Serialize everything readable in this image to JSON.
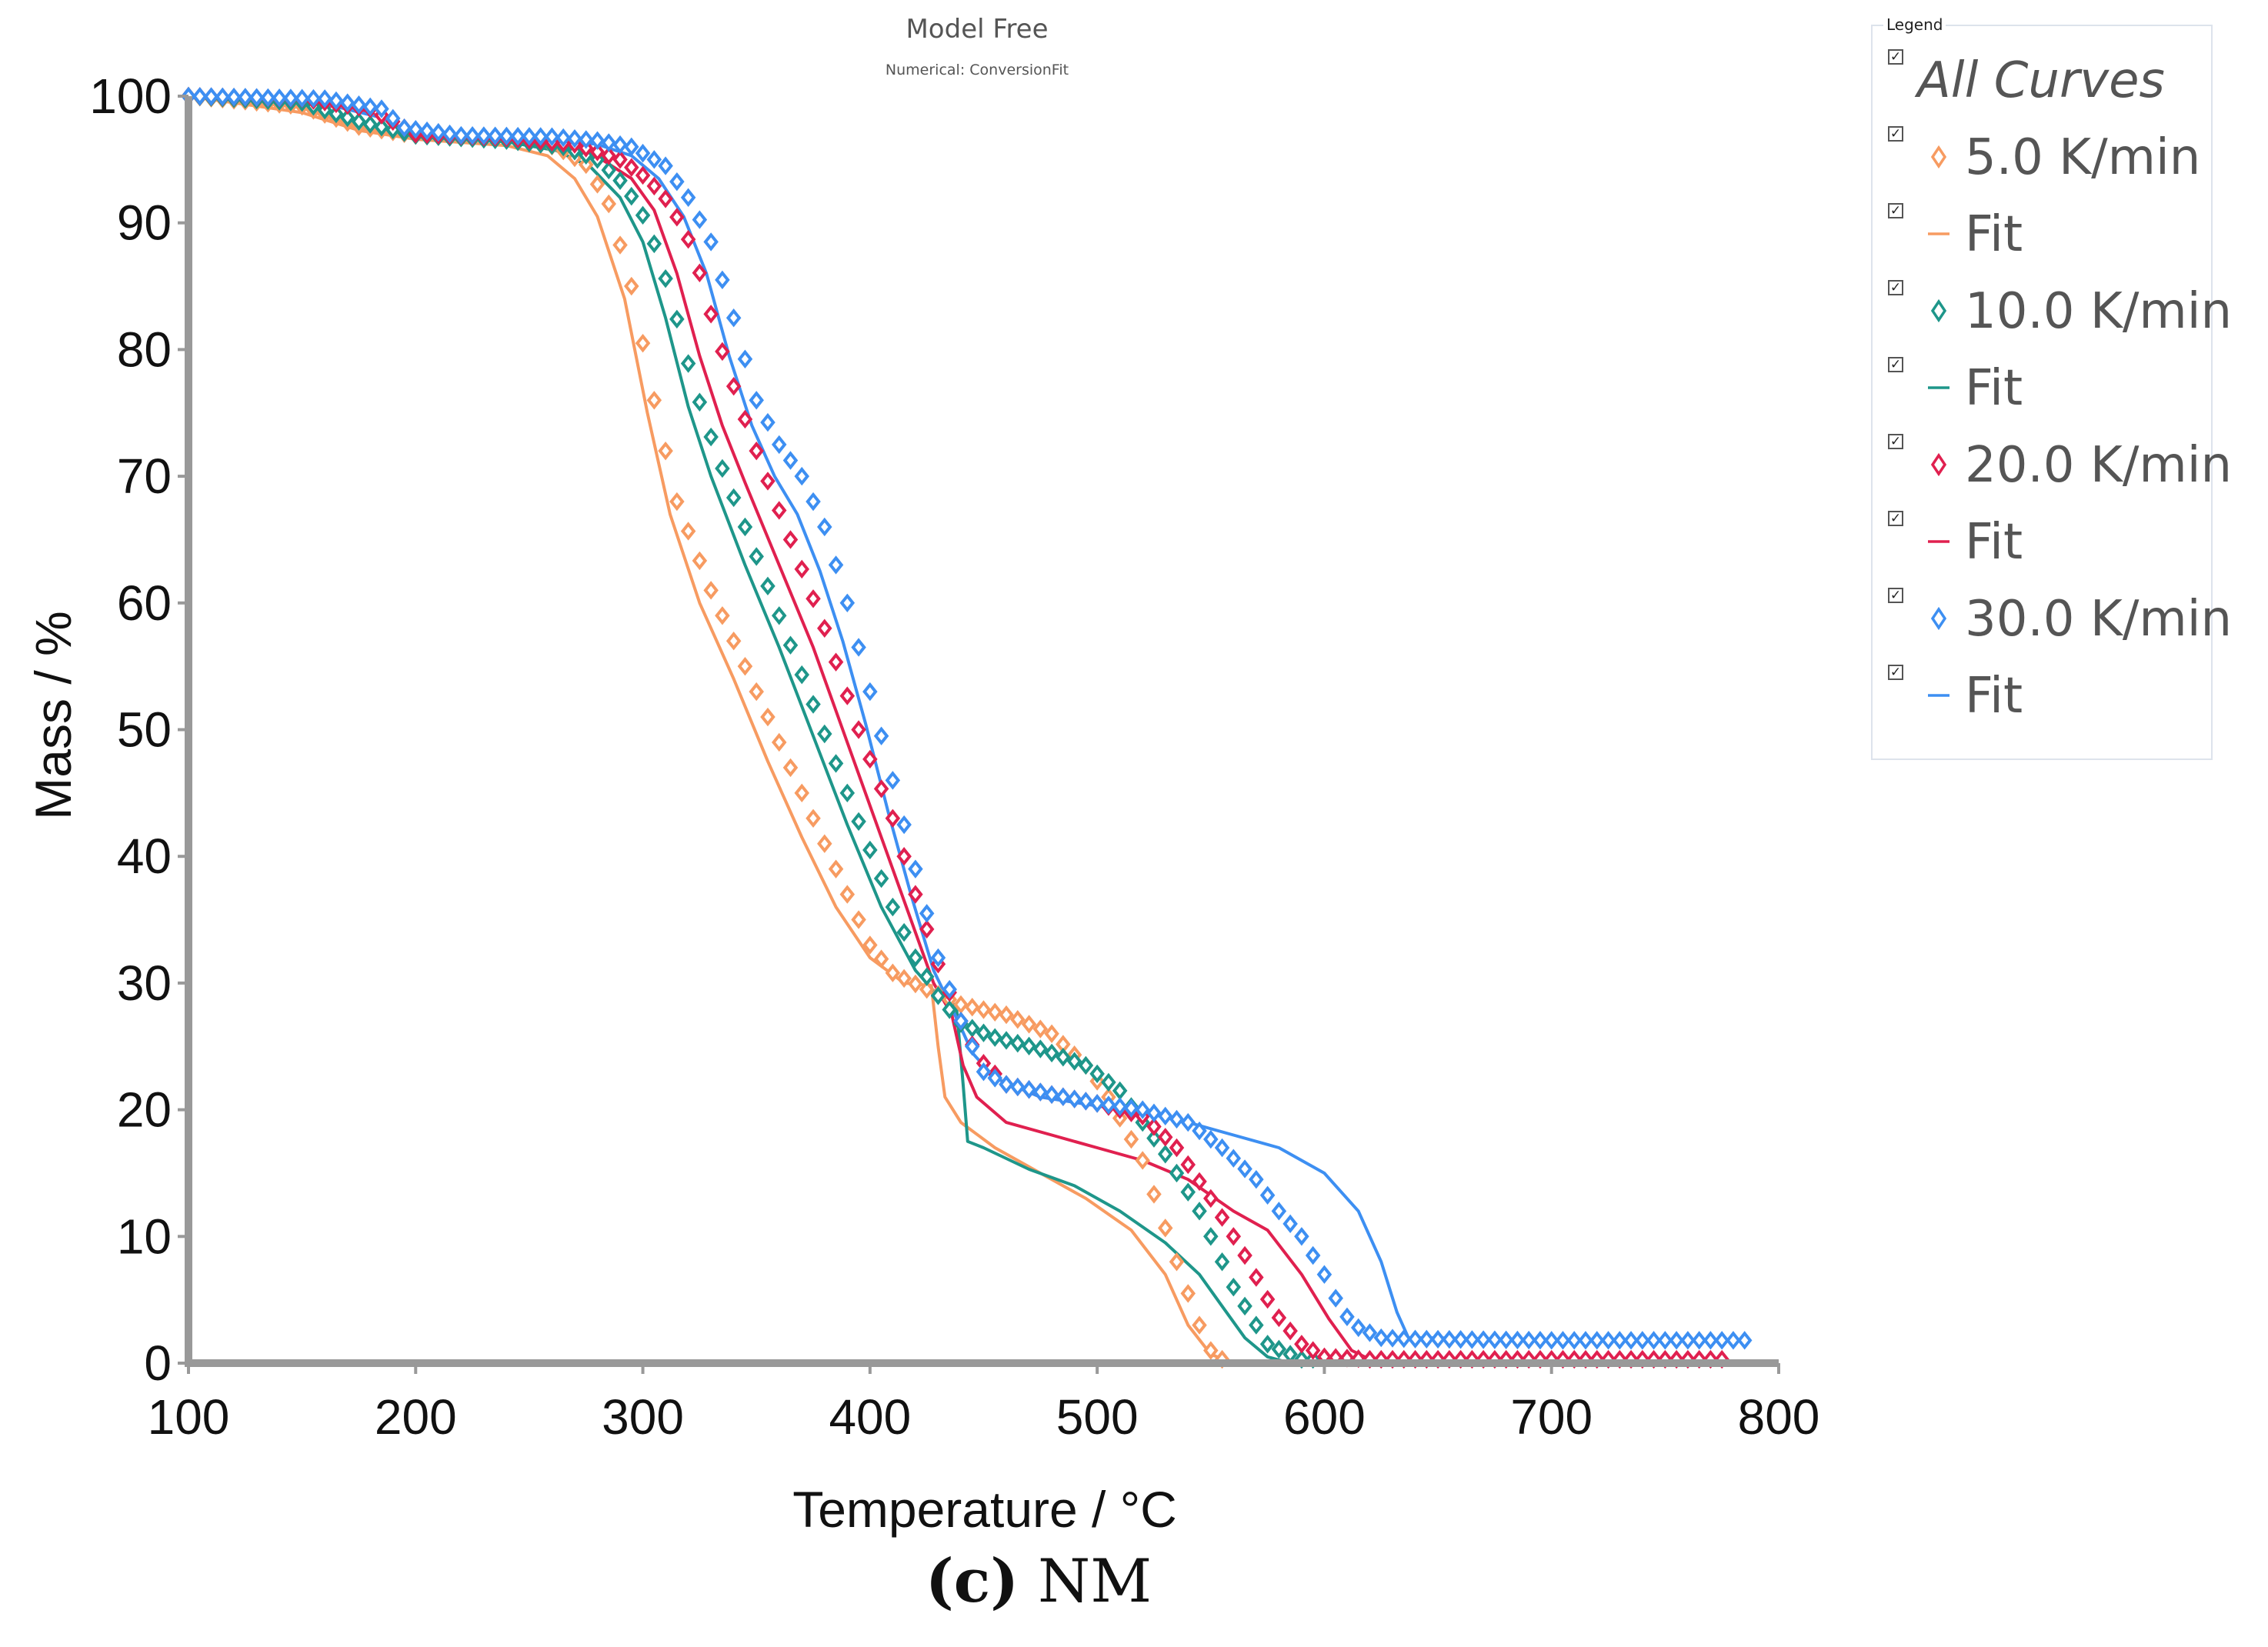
{
  "chart_data": {
    "type": "line",
    "title": "Model Free",
    "subtitle": "Numerical: ConversionFit",
    "xlabel": "Temperature / °C",
    "ylabel": "Mass / %",
    "xlim": [
      100,
      800
    ],
    "ylim": [
      0,
      100
    ],
    "xticks": [
      "100",
      "200",
      "300",
      "400",
      "500",
      "600",
      "700",
      "800"
    ],
    "yticks": [
      "0",
      "10",
      "20",
      "30",
      "40",
      "50",
      "60",
      "70",
      "80",
      "90",
      "100"
    ],
    "grid": false,
    "legend_position": "top-right",
    "series": [
      {
        "name": "5.0 K/min",
        "kind": "marker",
        "color": "#f79b61",
        "x_end": 555,
        "points": [
          [
            100,
            100
          ],
          [
            150,
            99.2
          ],
          [
            175,
            97.6
          ],
          [
            200,
            96.9
          ],
          [
            240,
            96.6
          ],
          [
            262,
            96.0
          ],
          [
            275,
            94.6
          ],
          [
            285,
            91.5
          ],
          [
            295,
            85
          ],
          [
            305,
            76
          ],
          [
            315,
            68
          ],
          [
            330,
            61
          ],
          [
            345,
            55
          ],
          [
            360,
            49
          ],
          [
            375,
            43
          ],
          [
            390,
            37
          ],
          [
            400,
            33
          ],
          [
            410,
            30.8
          ],
          [
            425,
            29.5
          ],
          [
            440,
            28.3
          ],
          [
            460,
            27.5
          ],
          [
            480,
            26
          ],
          [
            495,
            23.5
          ],
          [
            505,
            21
          ],
          [
            520,
            16
          ],
          [
            535,
            8
          ],
          [
            545,
            3
          ],
          [
            550,
            1
          ],
          [
            555,
            0.3
          ]
        ]
      },
      {
        "name": "Fit",
        "kind": "line",
        "color": "#f79b61",
        "points": [
          [
            100,
            100
          ],
          [
            150,
            98.7
          ],
          [
            175,
            97.3
          ],
          [
            200,
            96.6
          ],
          [
            240,
            96.1
          ],
          [
            258,
            95.3
          ],
          [
            270,
            93.5
          ],
          [
            280,
            90.5
          ],
          [
            292,
            84
          ],
          [
            302,
            75
          ],
          [
            312,
            67
          ],
          [
            325,
            60
          ],
          [
            340,
            54
          ],
          [
            355,
            47.5
          ],
          [
            370,
            41.5
          ],
          [
            385,
            36
          ],
          [
            400,
            32
          ],
          [
            415,
            30
          ],
          [
            427,
            29.8
          ],
          [
            430,
            25
          ],
          [
            433,
            21
          ],
          [
            440,
            19
          ],
          [
            455,
            17
          ],
          [
            475,
            15
          ],
          [
            495,
            13
          ],
          [
            515,
            10.5
          ],
          [
            530,
            7
          ],
          [
            540,
            3
          ],
          [
            550,
            0.7
          ],
          [
            560,
            0
          ],
          [
            600,
            0
          ]
        ]
      },
      {
        "name": "10.0 K/min",
        "kind": "marker",
        "color": "#1e968a",
        "x_end": 595,
        "points": [
          [
            100,
            100
          ],
          [
            150,
            99.5
          ],
          [
            175,
            98
          ],
          [
            200,
            96.9
          ],
          [
            240,
            96.5
          ],
          [
            265,
            96
          ],
          [
            280,
            95
          ],
          [
            292,
            93
          ],
          [
            302,
            90
          ],
          [
            312,
            84.5
          ],
          [
            322,
            77.5
          ],
          [
            332,
            72
          ],
          [
            345,
            66
          ],
          [
            360,
            59
          ],
          [
            375,
            52
          ],
          [
            390,
            45
          ],
          [
            400,
            40.5
          ],
          [
            410,
            36
          ],
          [
            420,
            32
          ],
          [
            430,
            29
          ],
          [
            440,
            26.8
          ],
          [
            455,
            25.7
          ],
          [
            475,
            24.8
          ],
          [
            495,
            23.5
          ],
          [
            510,
            21.5
          ],
          [
            520,
            19
          ],
          [
            530,
            16.5
          ],
          [
            545,
            12
          ],
          [
            560,
            6
          ],
          [
            575,
            1.5
          ],
          [
            590,
            0.3
          ],
          [
            595,
            0.3
          ]
        ]
      },
      {
        "name": "Fit",
        "kind": "line",
        "color": "#1e968a",
        "points": [
          [
            100,
            100
          ],
          [
            150,
            99.3
          ],
          [
            175,
            97.8
          ],
          [
            200,
            96.8
          ],
          [
            240,
            96.4
          ],
          [
            262,
            95.7
          ],
          [
            277,
            94.4
          ],
          [
            290,
            92
          ],
          [
            300,
            88.5
          ],
          [
            310,
            82.5
          ],
          [
            320,
            75.5
          ],
          [
            330,
            70
          ],
          [
            345,
            63
          ],
          [
            360,
            56.5
          ],
          [
            375,
            49.5
          ],
          [
            390,
            42.5
          ],
          [
            405,
            36
          ],
          [
            420,
            31
          ],
          [
            430,
            29
          ],
          [
            438,
            28.2
          ],
          [
            441,
            22
          ],
          [
            443,
            17.5
          ],
          [
            450,
            17
          ],
          [
            470,
            15.3
          ],
          [
            490,
            14
          ],
          [
            510,
            12
          ],
          [
            530,
            9.5
          ],
          [
            545,
            7
          ],
          [
            555,
            4.5
          ],
          [
            565,
            2
          ],
          [
            575,
            0.5
          ],
          [
            585,
            0
          ],
          [
            620,
            0
          ]
        ]
      },
      {
        "name": "20.0 K/min",
        "kind": "marker",
        "color": "#e0204f",
        "x_end": 775,
        "points": [
          [
            100,
            100
          ],
          [
            150,
            99.8
          ],
          [
            180,
            99
          ],
          [
            200,
            97
          ],
          [
            240,
            96.7
          ],
          [
            270,
            96.2
          ],
          [
            290,
            95
          ],
          [
            302,
            93.5
          ],
          [
            312,
            91.5
          ],
          [
            322,
            88
          ],
          [
            332,
            81.5
          ],
          [
            342,
            76
          ],
          [
            352,
            71
          ],
          [
            365,
            65
          ],
          [
            380,
            58
          ],
          [
            395,
            50
          ],
          [
            410,
            43
          ],
          [
            420,
            37
          ],
          [
            430,
            31.5
          ],
          [
            440,
            27
          ],
          [
            448,
            24
          ],
          [
            460,
            22
          ],
          [
            480,
            21.2
          ],
          [
            500,
            20.5
          ],
          [
            520,
            19.5
          ],
          [
            535,
            17
          ],
          [
            550,
            13
          ],
          [
            565,
            8.5
          ],
          [
            578,
            4
          ],
          [
            590,
            1.5
          ],
          [
            600,
            0.5
          ],
          [
            620,
            0.3
          ],
          [
            700,
            0.3
          ],
          [
            775,
            0.3
          ]
        ]
      },
      {
        "name": "Fit",
        "kind": "line",
        "color": "#e0204f",
        "points": [
          [
            100,
            100
          ],
          [
            150,
            99.6
          ],
          [
            180,
            98.7
          ],
          [
            200,
            97
          ],
          [
            240,
            96.5
          ],
          [
            265,
            96
          ],
          [
            282,
            95
          ],
          [
            295,
            93.5
          ],
          [
            305,
            91
          ],
          [
            315,
            86
          ],
          [
            325,
            79.5
          ],
          [
            335,
            74
          ],
          [
            345,
            69.5
          ],
          [
            360,
            63
          ],
          [
            375,
            56.5
          ],
          [
            390,
            49
          ],
          [
            405,
            41.5
          ],
          [
            418,
            35
          ],
          [
            428,
            30
          ],
          [
            436,
            27.5
          ],
          [
            441,
            23.5
          ],
          [
            447,
            21
          ],
          [
            460,
            19
          ],
          [
            480,
            18
          ],
          [
            500,
            17
          ],
          [
            520,
            16
          ],
          [
            540,
            14.5
          ],
          [
            560,
            12
          ],
          [
            575,
            10.5
          ],
          [
            590,
            7
          ],
          [
            602,
            3.5
          ],
          [
            612,
            1
          ],
          [
            620,
            0.3
          ],
          [
            650,
            0.3
          ],
          [
            775,
            0.3
          ]
        ]
      },
      {
        "name": "30.0 K/min",
        "kind": "marker",
        "color": "#3d8ff2",
        "x_end": 785,
        "points": [
          [
            100,
            100
          ],
          [
            160,
            99.8
          ],
          [
            185,
            99
          ],
          [
            195,
            97.5
          ],
          [
            220,
            96.9
          ],
          [
            260,
            96.8
          ],
          [
            280,
            96.5
          ],
          [
            295,
            96
          ],
          [
            310,
            94.5
          ],
          [
            320,
            92
          ],
          [
            330,
            88.5
          ],
          [
            340,
            82.5
          ],
          [
            350,
            76
          ],
          [
            360,
            72.5
          ],
          [
            370,
            70
          ],
          [
            380,
            66
          ],
          [
            390,
            60
          ],
          [
            400,
            53
          ],
          [
            410,
            46
          ],
          [
            420,
            39
          ],
          [
            430,
            32
          ],
          [
            440,
            27
          ],
          [
            450,
            23
          ],
          [
            460,
            22
          ],
          [
            480,
            21.2
          ],
          [
            500,
            20.5
          ],
          [
            520,
            20
          ],
          [
            540,
            19
          ],
          [
            555,
            17
          ],
          [
            570,
            14.5
          ],
          [
            580,
            12
          ],
          [
            590,
            10
          ],
          [
            600,
            7
          ],
          [
            608,
            4
          ],
          [
            615,
            2.8
          ],
          [
            625,
            2
          ],
          [
            640,
            1.9
          ],
          [
            700,
            1.8
          ],
          [
            785,
            1.8
          ]
        ]
      },
      {
        "name": "Fit",
        "kind": "line",
        "color": "#3d8ff2",
        "points": [
          [
            100,
            100
          ],
          [
            160,
            99.4
          ],
          [
            185,
            98.3
          ],
          [
            195,
            97.4
          ],
          [
            220,
            96.9
          ],
          [
            260,
            96.6
          ],
          [
            280,
            96.2
          ],
          [
            295,
            95.3
          ],
          [
            307,
            93.5
          ],
          [
            318,
            90.5
          ],
          [
            328,
            86
          ],
          [
            338,
            79.5
          ],
          [
            348,
            74
          ],
          [
            358,
            70
          ],
          [
            368,
            67
          ],
          [
            378,
            62.5
          ],
          [
            388,
            57
          ],
          [
            398,
            50.5
          ],
          [
            408,
            43.5
          ],
          [
            418,
            37
          ],
          [
            428,
            31
          ],
          [
            436,
            28
          ],
          [
            440,
            26.5
          ],
          [
            445,
            24.5
          ],
          [
            455,
            22.5
          ],
          [
            475,
            21
          ],
          [
            500,
            20.3
          ],
          [
            520,
            19.8
          ],
          [
            540,
            19
          ],
          [
            560,
            18
          ],
          [
            580,
            17
          ],
          [
            600,
            15
          ],
          [
            615,
            12
          ],
          [
            625,
            8
          ],
          [
            632,
            4
          ],
          [
            637,
            2
          ],
          [
            650,
            2
          ],
          [
            700,
            1.8
          ],
          [
            785,
            1.8
          ]
        ]
      }
    ]
  },
  "legend": {
    "title": "Legend",
    "check_glyph": "☑",
    "items": [
      {
        "label": "All Curves",
        "symbol": "none",
        "color": "#555555"
      },
      {
        "label": "5.0 K/min",
        "symbol": "diamond",
        "color": "#f79b61"
      },
      {
        "label": "Fit",
        "symbol": "line",
        "color": "#f79b61"
      },
      {
        "label": "10.0 K/min",
        "symbol": "diamond",
        "color": "#1e968a"
      },
      {
        "label": "Fit",
        "symbol": "line",
        "color": "#1e968a"
      },
      {
        "label": "20.0 K/min",
        "symbol": "diamond",
        "color": "#e0204f"
      },
      {
        "label": "Fit",
        "symbol": "line",
        "color": "#e0204f"
      },
      {
        "label": "30.0 K/min",
        "symbol": "diamond",
        "color": "#3d8ff2"
      },
      {
        "label": "Fit",
        "symbol": "line",
        "color": "#3d8ff2"
      }
    ]
  },
  "caption": {
    "letter": "(c)",
    "text": "NM"
  },
  "colors": {
    "axis": "#999999",
    "text": "#555555"
  }
}
